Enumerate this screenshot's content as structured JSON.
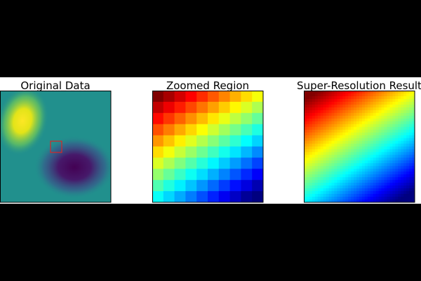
{
  "panels": [
    {
      "title": "Original Data"
    },
    {
      "title": "Zoomed Region"
    },
    {
      "title": "Super-Resolution Result"
    }
  ]
}
